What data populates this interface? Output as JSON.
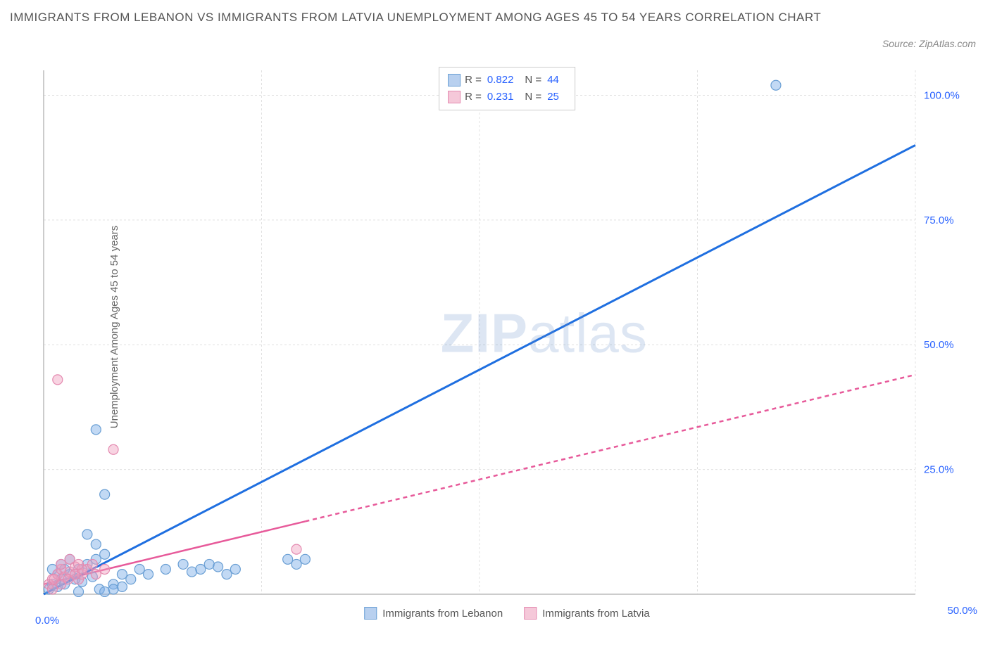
{
  "title": "IMMIGRANTS FROM LEBANON VS IMMIGRANTS FROM LATVIA UNEMPLOYMENT AMONG AGES 45 TO 54 YEARS CORRELATION CHART",
  "source": "Source: ZipAtlas.com",
  "y_axis_label": "Unemployment Among Ages 45 to 54 years",
  "watermark": {
    "zip": "ZIP",
    "atlas": "atlas"
  },
  "chart": {
    "type": "scatter",
    "xlim": [
      0,
      50
    ],
    "ylim": [
      0,
      105
    ],
    "x_ticks": [
      0,
      12.5,
      25,
      37.5,
      50
    ],
    "y_ticks": [
      25,
      50,
      75,
      100
    ],
    "x_tick_labels": {
      "0": "0.0%",
      "50": "50.0%"
    },
    "y_tick_labels": [
      "25.0%",
      "50.0%",
      "75.0%",
      "100.0%"
    ],
    "grid_color": "#e0e0e0",
    "axis_color": "#bbbbbb",
    "tick_label_color": "#2962ff",
    "background": "#ffffff",
    "series": [
      {
        "name": "Immigrants from Lebanon",
        "color_fill": "rgba(120,170,230,0.45)",
        "color_stroke": "#6a9fd4",
        "swatch_fill": "#b8d0ef",
        "swatch_stroke": "#6a9fd4",
        "trend_color": "#1f6fe0",
        "trend_width": 3,
        "trend_dash": "none",
        "trend": {
          "x1": 0,
          "y1": 0,
          "x2": 50,
          "y2": 90
        },
        "R": "0.822",
        "N": "44",
        "points": [
          [
            0.3,
            1
          ],
          [
            0.5,
            2
          ],
          [
            0.8,
            1.5
          ],
          [
            1,
            3
          ],
          [
            1.2,
            2
          ],
          [
            1.5,
            4
          ],
          [
            1.8,
            3
          ],
          [
            2,
            5
          ],
          [
            2.2,
            2.5
          ],
          [
            2.5,
            6
          ],
          [
            2.8,
            3.5
          ],
          [
            3,
            7
          ],
          [
            3.2,
            1
          ],
          [
            3.5,
            8
          ],
          [
            3.5,
            20
          ],
          [
            4,
            2
          ],
          [
            4.5,
            4
          ],
          [
            5,
            3
          ],
          [
            5.5,
            5
          ],
          [
            6,
            4
          ],
          [
            2.5,
            12
          ],
          [
            3,
            10
          ],
          [
            0.5,
            5
          ],
          [
            1,
            6
          ],
          [
            1.5,
            7
          ],
          [
            7,
            5
          ],
          [
            8,
            6
          ],
          [
            8.5,
            4.5
          ],
          [
            9,
            5
          ],
          [
            9.5,
            6
          ],
          [
            10,
            5.5
          ],
          [
            10.5,
            4
          ],
          [
            11,
            5
          ],
          [
            14,
            7
          ],
          [
            14.5,
            6
          ],
          [
            15,
            7
          ],
          [
            3,
            33
          ],
          [
            3.5,
            0.5
          ],
          [
            4,
            1
          ],
          [
            4.5,
            1.5
          ],
          [
            0.8,
            4
          ],
          [
            1.2,
            5
          ],
          [
            42,
            102
          ],
          [
            2,
            0.5
          ]
        ]
      },
      {
        "name": "Immigrants from Latvia",
        "color_fill": "rgba(240,160,190,0.45)",
        "color_stroke": "#e48ab0",
        "swatch_fill": "#f5c8d9",
        "swatch_stroke": "#e48ab0",
        "trend_color": "#e75a9a",
        "trend_width": 2.5,
        "trend_dash": "6,5",
        "trend_solid_until": 15,
        "trend": {
          "x1": 0,
          "y1": 2,
          "x2": 50,
          "y2": 44
        },
        "R": "0.231",
        "N": "25",
        "points": [
          [
            0.5,
            3
          ],
          [
            0.8,
            4
          ],
          [
            1,
            5
          ],
          [
            1.2,
            3.5
          ],
          [
            1.5,
            4.5
          ],
          [
            1.8,
            5.5
          ],
          [
            2,
            3
          ],
          [
            2.2,
            4
          ],
          [
            2.5,
            5
          ],
          [
            2.8,
            6
          ],
          [
            3,
            4
          ],
          [
            3.5,
            5
          ],
          [
            0.3,
            2
          ],
          [
            0.6,
            3
          ],
          [
            1,
            2
          ],
          [
            1.4,
            3
          ],
          [
            1.8,
            4
          ],
          [
            2.2,
            5
          ],
          [
            4,
            29
          ],
          [
            0.8,
            43
          ],
          [
            1,
            6
          ],
          [
            1.5,
            7
          ],
          [
            2,
            6
          ],
          [
            14.5,
            9
          ],
          [
            0.5,
            1
          ]
        ]
      }
    ]
  },
  "legend_bottom": [
    "Immigrants from Lebanon",
    "Immigrants from Latvia"
  ]
}
